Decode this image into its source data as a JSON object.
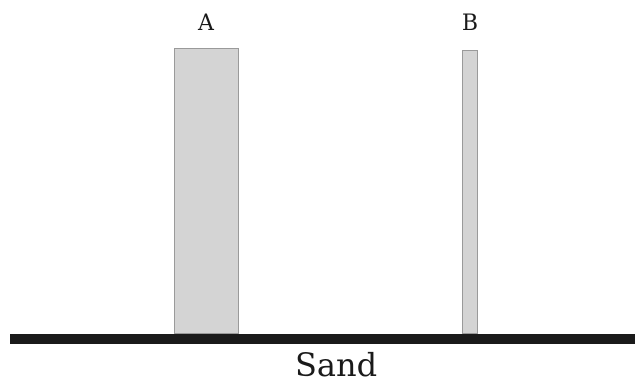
{
  "columns": [
    {
      "label": "A",
      "fill_color": "#d4d4d4"
    },
    {
      "label": "B",
      "fill_color": "#d4d4d4"
    }
  ],
  "ground": {
    "label": "Sand",
    "color": "#1a1a1a"
  }
}
